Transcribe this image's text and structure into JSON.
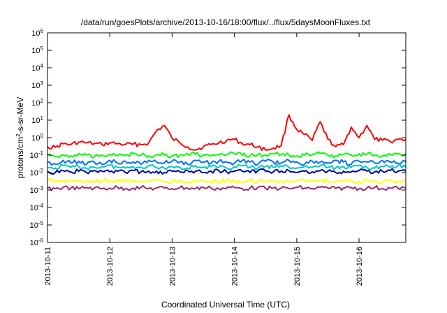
{
  "chart_data": {
    "type": "line",
    "title": "/data/run/goesPlots/archive/2013-10-16/18:00/flux/../flux/5daysMoonFluxes.txt",
    "xlabel": "Coordinated Universal Time (UTC)",
    "ylabel": "protons/cm2-s-sr-MeV",
    "ylabel_parts": {
      "pre": "protons/cm",
      "sup": "2",
      "post": "-s-sr-MeV"
    },
    "y_scale": "log",
    "ylim": [
      1e-06,
      1000000.0
    ],
    "y_ticks": [
      {
        "value": 1000000.0,
        "base": "10",
        "exp": "6"
      },
      {
        "value": 100000.0,
        "base": "10",
        "exp": "5"
      },
      {
        "value": 10000.0,
        "base": "10",
        "exp": "4"
      },
      {
        "value": 1000.0,
        "base": "10",
        "exp": "3"
      },
      {
        "value": 100.0,
        "base": "10",
        "exp": "2"
      },
      {
        "value": 10.0,
        "base": "10",
        "exp": "1"
      },
      {
        "value": 1.0,
        "base": "10",
        "exp": "0"
      },
      {
        "value": 0.1,
        "base": "10",
        "exp": "-1"
      },
      {
        "value": 0.01,
        "base": "10",
        "exp": "-2"
      },
      {
        "value": 0.001,
        "base": "10",
        "exp": "-3"
      },
      {
        "value": 0.0001,
        "base": "10",
        "exp": "-4"
      },
      {
        "value": 1e-05,
        "base": "10",
        "exp": "-5"
      },
      {
        "value": 1e-06,
        "base": "10",
        "exp": "-6"
      }
    ],
    "x_type": "time",
    "xlim": [
      "2013-10-11 00:00",
      "2013-10-16 18:00"
    ],
    "x_ticks": [
      "2013-10-11",
      "2013-10-12",
      "2013-10-13",
      "2013-10-14",
      "2013-10-15",
      "2013-10-16"
    ],
    "grid": false,
    "legend": "none",
    "x": [
      "2013-10-11 00:00",
      "2013-10-11 03:00",
      "2013-10-11 06:00",
      "2013-10-11 09:00",
      "2013-10-11 12:00",
      "2013-10-11 15:00",
      "2013-10-11 18:00",
      "2013-10-11 21:00",
      "2013-10-12 00:00",
      "2013-10-12 03:00",
      "2013-10-12 06:00",
      "2013-10-12 09:00",
      "2013-10-12 12:00",
      "2013-10-12 15:00",
      "2013-10-12 18:00",
      "2013-10-12 21:00",
      "2013-10-13 00:00",
      "2013-10-13 03:00",
      "2013-10-13 06:00",
      "2013-10-13 09:00",
      "2013-10-13 12:00",
      "2013-10-13 15:00",
      "2013-10-13 18:00",
      "2013-10-13 21:00",
      "2013-10-14 00:00",
      "2013-10-14 03:00",
      "2013-10-14 06:00",
      "2013-10-14 09:00",
      "2013-10-14 12:00",
      "2013-10-14 15:00",
      "2013-10-14 18:00",
      "2013-10-14 21:00",
      "2013-10-15 00:00",
      "2013-10-15 03:00",
      "2013-10-15 06:00",
      "2013-10-15 09:00",
      "2013-10-15 12:00",
      "2013-10-15 15:00",
      "2013-10-15 18:00",
      "2013-10-15 21:00",
      "2013-10-16 00:00",
      "2013-10-16 03:00",
      "2013-10-16 06:00",
      "2013-10-16 09:00",
      "2013-10-16 12:00",
      "2013-10-16 15:00",
      "2013-10-16 18:00"
    ],
    "series": [
      {
        "color": "#ff0000",
        "values": [
          0.3,
          0.28,
          0.45,
          0.4,
          0.55,
          0.5,
          0.45,
          0.4,
          0.5,
          0.45,
          0.4,
          0.42,
          0.4,
          0.5,
          2.5,
          5.0,
          0.9,
          0.5,
          0.3,
          0.2,
          0.3,
          0.4,
          0.5,
          0.7,
          0.8,
          0.45,
          0.4,
          0.3,
          0.2,
          0.25,
          0.35,
          20.0,
          3.0,
          1.5,
          0.7,
          8.0,
          0.8,
          0.3,
          0.4,
          4.0,
          1.0,
          5.0,
          0.8,
          0.7,
          0.6,
          0.8,
          0.8
        ]
      },
      {
        "color": "#00ff00",
        "values": [
          0.1,
          0.08,
          0.1,
          0.09,
          0.12,
          0.1,
          0.08,
          0.1,
          0.11,
          0.09,
          0.1,
          0.12,
          0.1,
          0.09,
          0.11,
          0.1,
          0.09,
          0.1,
          0.12,
          0.11,
          0.1,
          0.09,
          0.1,
          0.11,
          0.12,
          0.1,
          0.09,
          0.11,
          0.1,
          0.12,
          0.11,
          0.1,
          0.09,
          0.1,
          0.11,
          0.12,
          0.1,
          0.09,
          0.11,
          0.1,
          0.12,
          0.11,
          0.1,
          0.09,
          0.11,
          0.12,
          0.12
        ]
      },
      {
        "color": "#0070ff",
        "values": [
          0.04,
          0.03,
          0.05,
          0.035,
          0.045,
          0.03,
          0.04,
          0.03,
          0.05,
          0.035,
          0.045,
          0.04,
          0.03,
          0.05,
          0.04,
          0.035,
          0.045,
          0.04,
          0.03,
          0.05,
          0.04,
          0.035,
          0.045,
          0.04,
          0.035,
          0.05,
          0.04,
          0.03,
          0.045,
          0.04,
          0.035,
          0.05,
          0.04,
          0.03,
          0.045,
          0.04,
          0.035,
          0.05,
          0.04,
          0.03,
          0.045,
          0.04,
          0.035,
          0.05,
          0.04,
          0.035,
          0.04
        ]
      },
      {
        "color": "#00c8c8",
        "values": [
          0.02,
          0.018,
          0.025,
          0.02,
          0.022,
          0.018,
          0.02,
          0.022,
          0.025,
          0.02,
          0.018,
          0.022,
          0.02,
          0.025,
          0.02,
          0.018,
          0.022,
          0.02,
          0.018,
          0.025,
          0.02,
          0.022,
          0.02,
          0.018,
          0.022,
          0.025,
          0.02,
          0.018,
          0.022,
          0.02,
          0.025,
          0.02,
          0.018,
          0.022,
          0.02,
          0.025,
          0.02,
          0.018,
          0.022,
          0.02,
          0.025,
          0.02,
          0.018,
          0.022,
          0.02,
          0.025,
          0.02
        ]
      },
      {
        "color": "#0000a0",
        "values": [
          0.012,
          0.01,
          0.013,
          0.011,
          0.012,
          0.01,
          0.013,
          0.012,
          0.011,
          0.012,
          0.01,
          0.013,
          0.011,
          0.012,
          0.012,
          0.01,
          0.012,
          0.011,
          0.013,
          0.012,
          0.01,
          0.012,
          0.013,
          0.011,
          0.012,
          0.012,
          0.01,
          0.013,
          0.012,
          0.011,
          0.012,
          0.013,
          0.01,
          0.012,
          0.011,
          0.013,
          0.012,
          0.01,
          0.012,
          0.011,
          0.013,
          0.012,
          0.011,
          0.012,
          0.013,
          0.012,
          0.012
        ]
      },
      {
        "color": "#ffff00",
        "values": [
          0.0035,
          0.003,
          0.0035,
          0.0032,
          0.003,
          0.0035,
          0.003,
          0.0033,
          0.0035,
          0.003,
          0.0032,
          0.0035,
          0.003,
          0.0033,
          0.0035,
          0.003,
          0.0032,
          0.0035,
          0.003,
          0.0033,
          0.0035,
          0.0032,
          0.003,
          0.0035,
          0.0033,
          0.003,
          0.0035,
          0.0032,
          0.003,
          0.0035,
          0.0033,
          0.003,
          0.0035,
          0.0032,
          0.003,
          0.0035,
          0.0033,
          0.003,
          0.0035,
          0.0032,
          0.003,
          0.0035,
          0.0033,
          0.003,
          0.0035,
          0.0032,
          0.0033
        ]
      },
      {
        "color": "#9b2a6a",
        "values": [
          0.0013,
          0.0012,
          0.0014,
          0.0013,
          0.0012,
          0.0014,
          0.0013,
          0.0012,
          0.0013,
          0.0014,
          0.0012,
          0.0013,
          0.0014,
          0.0012,
          0.0013,
          0.0013,
          0.0012,
          0.0014,
          0.0013,
          0.0012,
          0.0014,
          0.0013,
          0.0012,
          0.0013,
          0.0014,
          0.0012,
          0.0013,
          0.0014,
          0.0012,
          0.0013,
          0.0013,
          0.0012,
          0.0014,
          0.0013,
          0.0012,
          0.0014,
          0.0013,
          0.0012,
          0.0013,
          0.0014,
          0.0012,
          0.0013,
          0.0014,
          0.0012,
          0.0013,
          0.0013,
          0.0013
        ]
      }
    ]
  }
}
